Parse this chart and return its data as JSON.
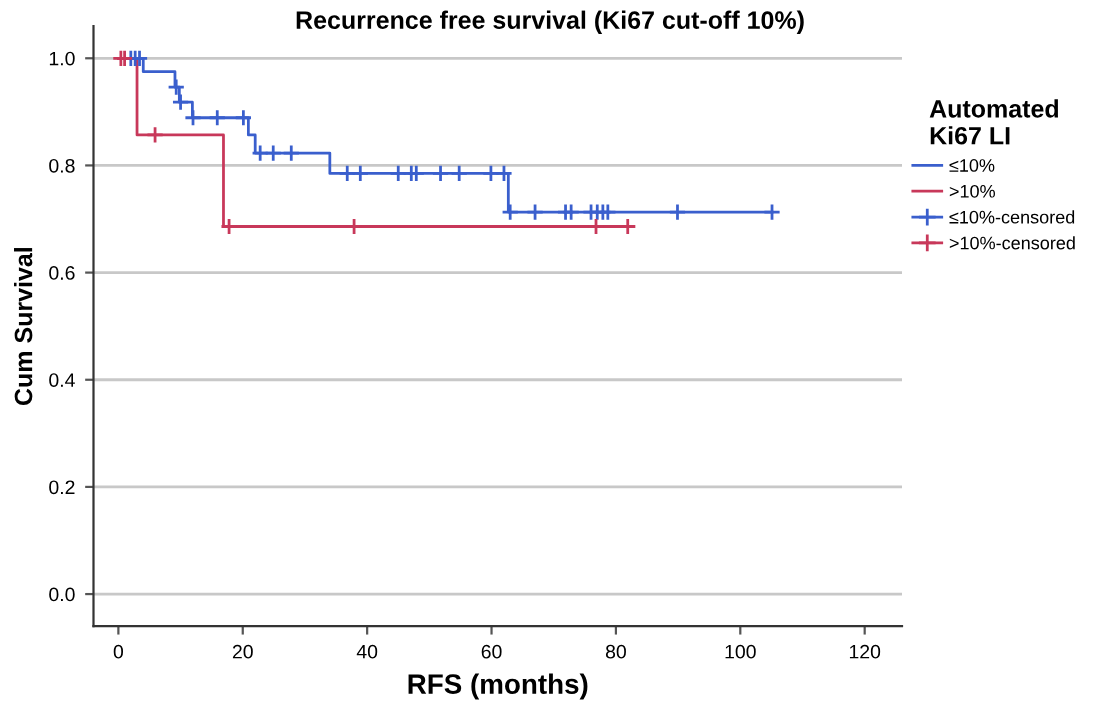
{
  "chart_data": {
    "type": "step",
    "title": "Recurrence free survival (Ki67 cut-off 10%)",
    "xlabel": "RFS (months)",
    "ylabel": "Cum Survival",
    "legend_title": "Automated\nKi67 LI",
    "series": [
      {
        "name": "≤10%",
        "color": "#3a5fcd",
        "x": [
          0,
          4.0,
          9.1,
          9.8,
          11.9,
          20.9,
          22.0,
          34.0,
          62.7,
          105.1
        ],
        "values": [
          1.0,
          0.975,
          0.946,
          0.918,
          0.889,
          0.857,
          0.823,
          0.785,
          0.713,
          0.713
        ]
      },
      {
        "name": ">10%",
        "color": "#c8385a",
        "x": [
          0,
          3.0,
          16.9,
          81.9
        ],
        "values": [
          1.0,
          0.857,
          0.686,
          0.686
        ]
      },
      {
        "name": "≤10%-censored",
        "type": "scatter",
        "marker": "cross",
        "color": "#3a5fcd",
        "x": [
          2.0,
          2.7,
          3.4,
          9.3,
          10.0,
          12.0,
          15.9,
          20.1,
          22.8,
          24.9,
          27.8,
          36.8,
          38.9,
          45.0,
          47.1,
          47.9,
          51.8,
          54.8,
          59.9,
          62.0,
          63.0,
          67.0,
          71.9,
          72.8,
          76.0,
          77.0,
          77.9,
          78.7,
          89.9,
          105.1
        ],
        "values": [
          1.0,
          1.0,
          1.0,
          0.946,
          0.918,
          0.889,
          0.889,
          0.889,
          0.823,
          0.823,
          0.823,
          0.785,
          0.785,
          0.785,
          0.785,
          0.785,
          0.785,
          0.785,
          0.785,
          0.785,
          0.713,
          0.713,
          0.713,
          0.713,
          0.713,
          0.713,
          0.713,
          0.713,
          0.713,
          0.713
        ]
      },
      {
        "name": ">10%-censored",
        "type": "scatter",
        "marker": "cross",
        "color": "#c8385a",
        "x": [
          0.4,
          1.0,
          5.9,
          17.8,
          37.9,
          76.8,
          81.9
        ],
        "values": [
          1.0,
          1.0,
          0.857,
          0.686,
          0.686,
          0.686,
          0.686
        ]
      }
    ],
    "xlim": [
      -4,
      126
    ],
    "xticks": [
      0,
      20,
      40,
      60,
      80,
      100,
      120
    ],
    "ylim": [
      -0.06,
      1.06
    ],
    "yticks": [
      {
        "value": 0.0,
        "label": "0.0"
      },
      {
        "value": 0.2,
        "label": "0.2"
      },
      {
        "value": 0.4,
        "label": "0.4"
      },
      {
        "value": 0.6,
        "label": "0.6"
      },
      {
        "value": 0.8,
        "label": "0.8"
      },
      {
        "value": 1.0,
        "label": "1.0"
      }
    ],
    "grid": "y",
    "legend": "right"
  }
}
